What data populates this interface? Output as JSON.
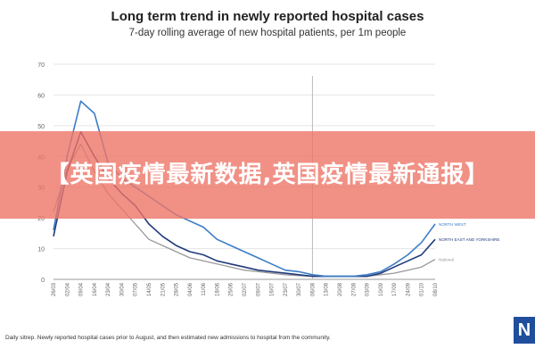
{
  "chart_data": {
    "type": "line",
    "title": "Long term trend in newly reported hospital cases",
    "subtitle": "7-day rolling average of new hospital patients, per 1m people",
    "ylim": [
      0,
      70
    ],
    "yticks": [
      0,
      10,
      20,
      30,
      40,
      50,
      60,
      70
    ],
    "x": [
      "26/03",
      "02/04",
      "09/04",
      "16/04",
      "23/04",
      "30/04",
      "07/05",
      "14/05",
      "21/05",
      "28/05",
      "04/06",
      "11/06",
      "18/06",
      "25/06",
      "02/07",
      "09/07",
      "16/07",
      "23/07",
      "30/07",
      "06/08",
      "13/08",
      "20/08",
      "27/08",
      "03/09",
      "10/09",
      "17/09",
      "24/09",
      "01/10",
      "08/10"
    ],
    "series": [
      {
        "name": "NORTH WEST",
        "color": "#3c7dc8",
        "values": [
          16,
          40,
          58,
          54,
          38,
          33,
          30,
          27,
          24,
          21,
          19,
          17,
          13,
          11,
          9,
          7,
          5,
          3,
          2.5,
          1.5,
          1,
          1,
          1,
          1.5,
          2.5,
          5,
          8,
          12,
          18
        ]
      },
      {
        "name": "NORTH EAST AND YORKSHIRE",
        "color": "#203a7a",
        "values": [
          14,
          35,
          48,
          40,
          33,
          28,
          24,
          18,
          14,
          11,
          9,
          8,
          6,
          5,
          4,
          3,
          2.5,
          2,
          1.5,
          1,
          1,
          1,
          1,
          1,
          2,
          4,
          6,
          8,
          13
        ]
      },
      {
        "name": "National",
        "color": "#999999",
        "values": [
          22,
          36,
          44,
          35,
          28,
          23,
          18,
          13,
          11,
          9,
          7,
          6,
          5,
          4,
          3,
          2.5,
          2,
          1.5,
          1.2,
          1,
          1,
          1,
          1,
          1,
          1.5,
          2,
          3,
          4,
          6.5
        ]
      }
    ],
    "vline_at": "06/08"
  },
  "banner": {
    "text": "【英国疫情最新数据,英国疫情最新通报】"
  },
  "footnote": "Daily sitrep. Newly reported hospital cases prior to August, and then estimated new admissions to hospital from the community.",
  "logo": {
    "text": "N"
  }
}
